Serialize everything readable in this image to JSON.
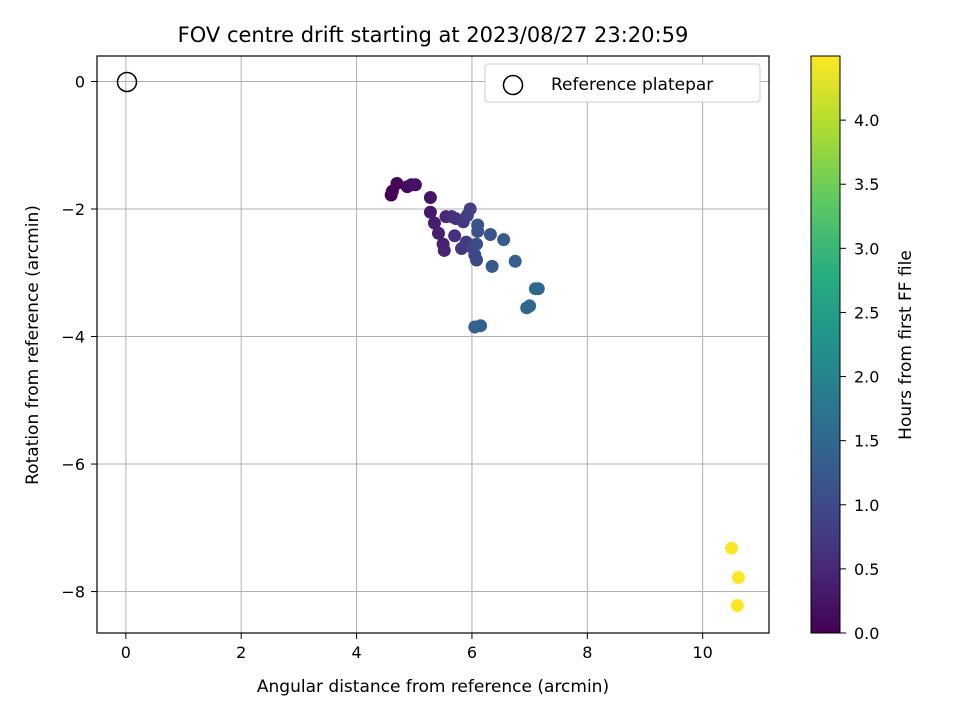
{
  "chart_data": {
    "type": "scatter",
    "title": "FOV centre drift starting at 2023/08/27 23:20:59",
    "xlabel": "Angular distance from reference (arcmin)",
    "ylabel": "Rotation from reference (arcmin)",
    "xlim": [
      -0.5,
      11.15
    ],
    "ylim": [
      -8.65,
      0.4
    ],
    "xticks": [
      0,
      2,
      4,
      6,
      8,
      10
    ],
    "yticks": [
      0,
      -2,
      -4,
      -6,
      -8
    ],
    "grid": true,
    "legend": {
      "placement": "top-right",
      "entries": [
        "Reference platepar"
      ]
    },
    "reference_point": {
      "x": 0,
      "y": 0,
      "marker": "open-circle"
    },
    "colorbar": {
      "label": "Hours from first FF file",
      "range": [
        0.0,
        4.5
      ],
      "ticks": [
        "0.0",
        "0.5",
        "1.0",
        "1.5",
        "2.0",
        "2.5",
        "3.0",
        "3.5",
        "4.0"
      ],
      "colormap": "viridis"
    },
    "points": [
      {
        "x": 4.6,
        "y": -1.78,
        "h": 0.02
      },
      {
        "x": 4.62,
        "y": -1.72,
        "h": 0.05
      },
      {
        "x": 4.7,
        "y": -1.6,
        "h": 0.08
      },
      {
        "x": 4.88,
        "y": -1.65,
        "h": 0.12
      },
      {
        "x": 4.95,
        "y": -1.62,
        "h": 0.16
      },
      {
        "x": 5.02,
        "y": -1.62,
        "h": 0.2
      },
      {
        "x": 5.28,
        "y": -1.82,
        "h": 0.25
      },
      {
        "x": 5.28,
        "y": -2.05,
        "h": 0.3
      },
      {
        "x": 5.35,
        "y": -2.22,
        "h": 0.34
      },
      {
        "x": 5.42,
        "y": -2.38,
        "h": 0.38
      },
      {
        "x": 5.5,
        "y": -2.55,
        "h": 0.42
      },
      {
        "x": 5.52,
        "y": -2.65,
        "h": 0.46
      },
      {
        "x": 5.55,
        "y": -2.12,
        "h": 0.5
      },
      {
        "x": 5.65,
        "y": -2.12,
        "h": 0.55
      },
      {
        "x": 5.7,
        "y": -2.42,
        "h": 0.6
      },
      {
        "x": 5.72,
        "y": -2.15,
        "h": 0.64
      },
      {
        "x": 5.82,
        "y": -2.62,
        "h": 0.7
      },
      {
        "x": 5.85,
        "y": -2.2,
        "h": 0.74
      },
      {
        "x": 5.9,
        "y": -2.52,
        "h": 0.78
      },
      {
        "x": 5.92,
        "y": -2.1,
        "h": 0.82
      },
      {
        "x": 5.97,
        "y": -2.0,
        "h": 0.86
      },
      {
        "x": 6.0,
        "y": -2.6,
        "h": 0.9
      },
      {
        "x": 6.05,
        "y": -2.72,
        "h": 0.95
      },
      {
        "x": 6.08,
        "y": -2.8,
        "h": 1.0
      },
      {
        "x": 6.08,
        "y": -2.55,
        "h": 1.05
      },
      {
        "x": 6.1,
        "y": -2.35,
        "h": 1.1
      },
      {
        "x": 6.1,
        "y": -2.25,
        "h": 1.15
      },
      {
        "x": 6.32,
        "y": -2.4,
        "h": 1.2
      },
      {
        "x": 6.35,
        "y": -2.9,
        "h": 1.25
      },
      {
        "x": 6.55,
        "y": -2.48,
        "h": 1.3
      },
      {
        "x": 6.75,
        "y": -2.82,
        "h": 1.35
      },
      {
        "x": 6.05,
        "y": -3.85,
        "h": 1.4
      },
      {
        "x": 6.15,
        "y": -3.83,
        "h": 1.42
      },
      {
        "x": 6.95,
        "y": -3.55,
        "h": 1.45
      },
      {
        "x": 7.0,
        "y": -3.52,
        "h": 1.48
      },
      {
        "x": 7.1,
        "y": -3.25,
        "h": 1.5
      },
      {
        "x": 7.15,
        "y": -3.25,
        "h": 1.52
      },
      {
        "x": 10.5,
        "y": -7.32,
        "h": 4.48
      },
      {
        "x": 10.62,
        "y": -7.78,
        "h": 4.49
      },
      {
        "x": 10.6,
        "y": -8.22,
        "h": 4.5
      }
    ]
  }
}
